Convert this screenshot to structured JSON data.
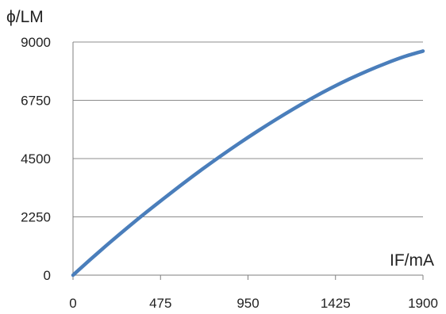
{
  "chart_data": {
    "type": "line",
    "ylabel": "ϕ/LM",
    "xlabel": "IF/mA",
    "xlim": [
      0,
      1900
    ],
    "ylim": [
      0,
      9000
    ],
    "x_ticks": [
      "0",
      "475",
      "950",
      "1425",
      "1900"
    ],
    "y_ticks": [
      "0",
      "2250",
      "4500",
      "6750",
      "9000"
    ],
    "grid": "horizontal",
    "series": [
      {
        "x": [
          0,
          100,
          200,
          300,
          400,
          500,
          600,
          700,
          800,
          900,
          1000,
          1100,
          1200,
          1300,
          1400,
          1500,
          1600,
          1700,
          1800,
          1900
        ],
        "y": [
          0,
          640,
          1260,
          1860,
          2440,
          3000,
          3550,
          4080,
          4590,
          5080,
          5550,
          6000,
          6430,
          6840,
          7220,
          7570,
          7890,
          8180,
          8440,
          8650
        ]
      }
    ]
  },
  "colors": {
    "line": "#4a7ebb",
    "grid": "#8c8c8c",
    "axis": "#7f7f7f"
  }
}
